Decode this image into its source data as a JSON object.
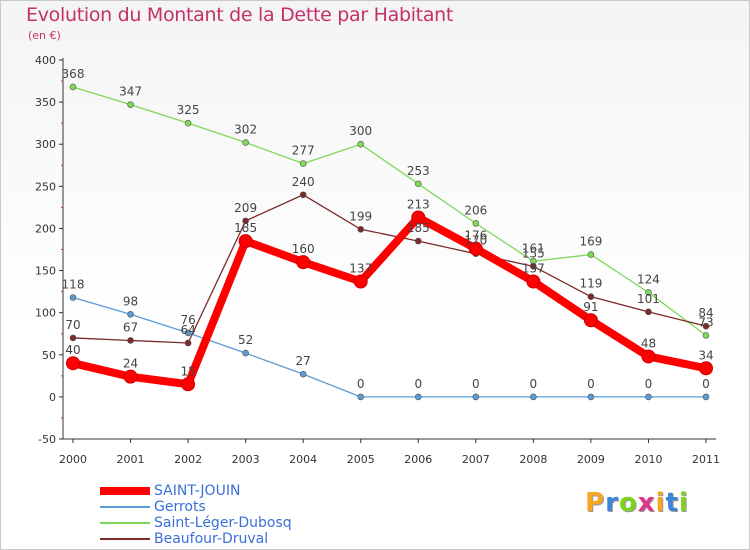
{
  "chart_data": {
    "type": "line",
    "title": "Evolution du Montant de la Dette par Habitant",
    "subtitle": "(en €)",
    "xlabel": "",
    "ylabel": "",
    "x": [
      "2000",
      "2001",
      "2002",
      "2003",
      "2004",
      "2005",
      "2006",
      "2007",
      "2008",
      "2009",
      "2010",
      "2011"
    ],
    "ylim": [
      -50,
      400
    ],
    "yticks": [
      "-50",
      "0",
      "50",
      "100",
      "150",
      "200",
      "250",
      "300",
      "350",
      "400"
    ],
    "grid": false,
    "legend_position": "bottom-left",
    "series": [
      {
        "name": "SAINT-JOUIN",
        "color": "#ff0000",
        "emphasis": true,
        "values": [
          40,
          24,
          15,
          185,
          160,
          137,
          213,
          176,
          137,
          91,
          48,
          34
        ],
        "labels": [
          "40",
          "24",
          "15",
          "185",
          "160",
          "137",
          "213",
          "176",
          "137",
          "91",
          "48",
          "34"
        ]
      },
      {
        "name": "Gerrots",
        "color": "#5b9bd5",
        "values": [
          118,
          98,
          76,
          52,
          27,
          0,
          0,
          0,
          0,
          0,
          0,
          0
        ],
        "labels": [
          "118",
          "98",
          "76",
          "52",
          "27",
          "0",
          "0",
          "0",
          "0",
          "0",
          "0",
          "0"
        ]
      },
      {
        "name": "Saint-Léger-Dubosq",
        "color": "#7ed957",
        "values": [
          368,
          347,
          325,
          302,
          277,
          300,
          253,
          206,
          161,
          169,
          124,
          73
        ],
        "labels": [
          "368",
          "347",
          "325",
          "302",
          "277",
          "300",
          "253",
          "206",
          "161",
          "169",
          "124",
          "73"
        ]
      },
      {
        "name": "Beaufour-Druval",
        "color": "#7b2a2a",
        "values": [
          70,
          67,
          64,
          209,
          240,
          199,
          185,
          170,
          155,
          119,
          101,
          84
        ],
        "labels": [
          "70",
          "67",
          "64",
          "209",
          "240",
          "199",
          "185",
          "170",
          "155",
          "119",
          "101",
          "84"
        ]
      }
    ]
  },
  "logo": {
    "letters": [
      "P",
      "r",
      "o",
      "x",
      "i",
      "t",
      "i"
    ],
    "colors": [
      "#f5a623",
      "#3a86d8",
      "#7ed321",
      "#e0358a",
      "#f5a623",
      "#3a86d8",
      "#7ed321"
    ]
  }
}
